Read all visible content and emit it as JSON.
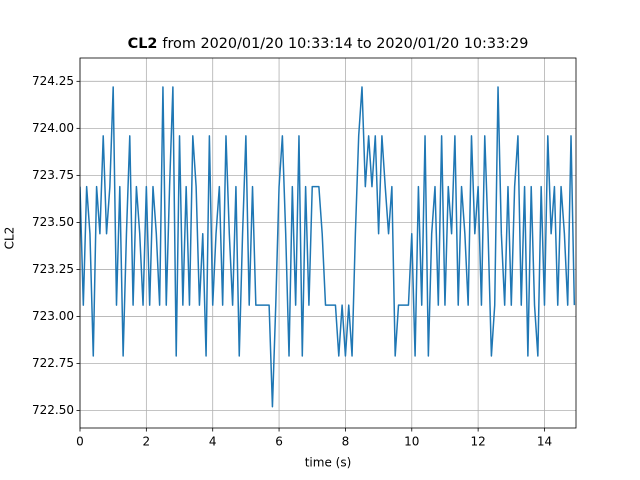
{
  "chart_data": {
    "type": "line",
    "title": [
      "CL2",
      "from 2020/01/20 10:33:14 to 2020/01/20 10:33:29"
    ],
    "xlabel": "time (s)",
    "ylabel": "CL2",
    "color": "#1f77b4",
    "grid": true,
    "xlim": [
      0,
      14.95
    ],
    "ylim": [
      722.407,
      724.374
    ],
    "xticks": [
      0,
      2,
      4,
      6,
      8,
      10,
      12,
      14
    ],
    "yticks": [
      {
        "value": 722.5,
        "label": "722.50"
      },
      722.75,
      {
        "value": 723,
        "label": "723.00"
      },
      723.25,
      {
        "value": 723.5,
        "label": "723.50"
      },
      723.75,
      {
        "value": 724,
        "label": "724.00"
      },
      724.25
    ],
    "x": [
      0,
      0.1,
      0.2,
      0.3,
      0.4,
      0.5,
      0.6,
      0.7,
      0.8,
      0.9,
      1,
      1.1,
      1.2,
      1.3,
      1.4,
      1.5,
      1.6,
      1.7,
      1.8,
      1.9,
      2,
      2.1,
      2.2,
      2.3,
      2.4,
      2.5,
      2.6,
      2.7,
      2.8,
      2.9,
      3,
      3.1,
      3.2,
      3.3,
      3.4,
      3.5,
      3.6,
      3.7,
      3.8,
      3.9,
      4,
      4.1,
      4.2,
      4.3,
      4.4,
      4.5,
      4.6,
      4.7,
      4.8,
      4.9,
      5,
      5.1,
      5.2,
      5.3,
      5.4,
      5.5,
      5.6,
      5.7,
      5.8,
      5.9,
      6,
      6.1,
      6.2,
      6.3,
      6.4,
      6.5,
      6.6,
      6.7,
      6.8,
      6.9,
      7,
      7.1,
      7.2,
      7.3,
      7.4,
      7.5,
      7.6,
      7.7,
      7.8,
      7.9,
      8,
      8.1,
      8.2,
      8.3,
      8.4,
      8.5,
      8.6,
      8.7,
      8.8,
      8.9,
      9,
      9.1,
      9.2,
      9.3,
      9.4,
      9.5,
      9.6,
      9.7,
      9.8,
      9.9,
      10,
      10.1,
      10.2,
      10.3,
      10.4,
      10.5,
      10.6,
      10.7,
      10.8,
      10.9,
      11,
      11.1,
      11.2,
      11.3,
      11.4,
      11.5,
      11.6,
      11.7,
      11.8,
      11.9,
      12,
      12.1,
      12.2,
      12.3,
      12.4,
      12.5,
      12.6,
      12.7,
      12.8,
      12.9,
      13,
      13.1,
      13.2,
      13.3,
      13.4,
      13.5,
      13.6,
      13.7,
      13.8,
      13.9,
      14,
      14.1,
      14.2,
      14.3,
      14.4,
      14.5,
      14.6,
      14.7,
      14.8,
      14.9
    ],
    "values": [
      723.69,
      723.06,
      723.69,
      723.44,
      722.79,
      723.69,
      723.44,
      723.96,
      723.44,
      723.69,
      724.22,
      723.06,
      723.69,
      722.79,
      723.44,
      723.96,
      723.06,
      723.69,
      723.44,
      723.06,
      723.69,
      723.06,
      723.69,
      723.44,
      723.06,
      724.22,
      723.06,
      723.69,
      724.22,
      722.79,
      723.96,
      723.06,
      723.69,
      723.06,
      723.96,
      723.69,
      723.06,
      723.44,
      722.79,
      723.96,
      723.06,
      723.44,
      723.69,
      723.06,
      723.96,
      723.44,
      723.06,
      723.69,
      722.79,
      723.44,
      723.96,
      723.06,
      723.69,
      723.06,
      723.06,
      723.06,
      723.06,
      723.06,
      722.52,
      723.06,
      723.69,
      723.96,
      723.44,
      722.79,
      723.69,
      723.06,
      723.96,
      722.79,
      723.69,
      723.06,
      723.69,
      723.69,
      723.69,
      723.44,
      723.06,
      723.06,
      723.06,
      723.06,
      722.79,
      723.06,
      722.79,
      723.06,
      722.79,
      723.44,
      723.96,
      724.22,
      723.69,
      723.96,
      723.69,
      723.96,
      723.44,
      723.96,
      723.69,
      723.44,
      723.69,
      722.79,
      723.06,
      723.06,
      723.06,
      723.06,
      723.44,
      722.79,
      723.69,
      723.06,
      723.96,
      722.79,
      723.44,
      723.69,
      723.06,
      723.96,
      723.06,
      723.69,
      723.44,
      723.96,
      723.06,
      723.69,
      723.44,
      723.06,
      723.96,
      723.44,
      723.69,
      723.06,
      723.96,
      723.44,
      722.79,
      723.06,
      724.22,
      723.44,
      723.06,
      723.69,
      723.06,
      723.69,
      723.96,
      723.06,
      723.69,
      722.79,
      723.69,
      723.06,
      722.79,
      723.69,
      723.06,
      723.96,
      723.44,
      723.69,
      723.06,
      723.69,
      723.44,
      723.06,
      723.96,
      723.06
    ]
  }
}
